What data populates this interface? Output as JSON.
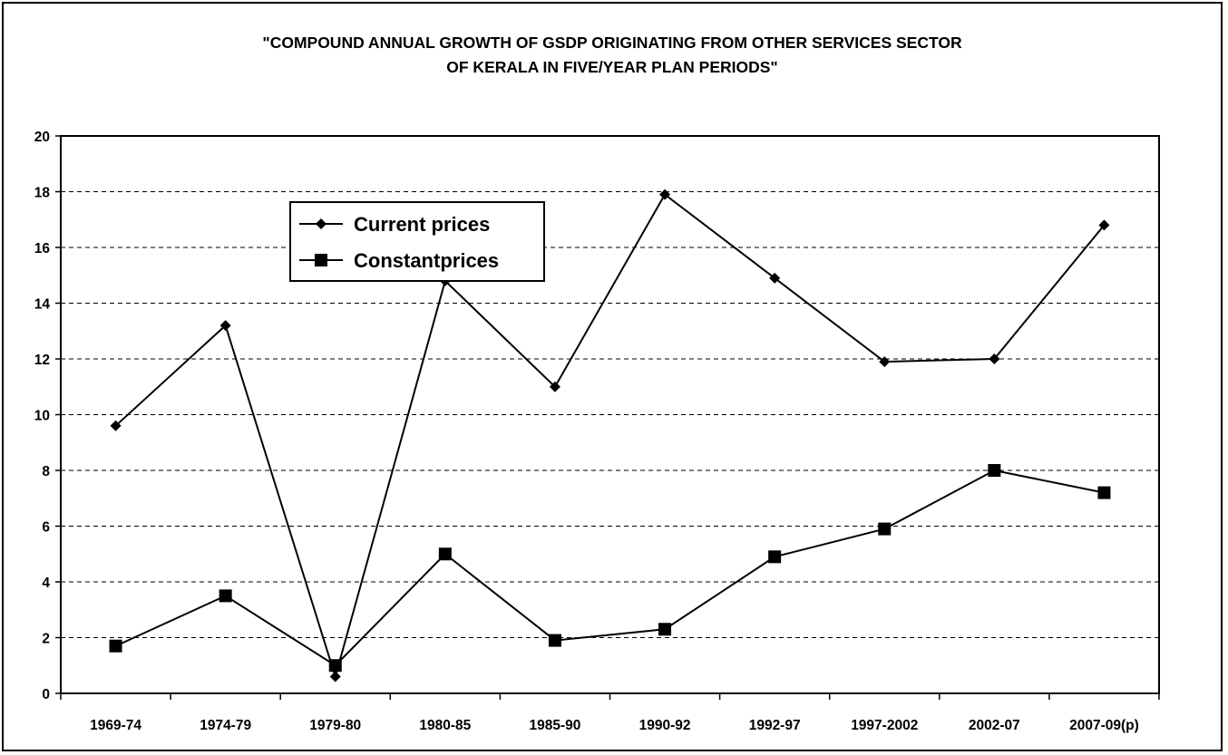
{
  "chart_data": {
    "type": "line",
    "title_lines": [
      "\"COMPOUND ANNUAL GROWTH OF GSDP ORIGINATING FROM OTHER SERVICES SECTOR",
      "OF KERALA IN FIVE/YEAR PLAN PERIODS\""
    ],
    "xlabel": "",
    "ylabel": "",
    "categories": [
      "1969-74",
      "1974-79",
      "1979-80",
      "1980-85",
      "1985-90",
      "1990-92",
      "1992-97",
      "1997-2002",
      "2002-07",
      "2007-09(p)"
    ],
    "ylim": [
      0,
      20
    ],
    "yticks": [
      0,
      2,
      4,
      6,
      8,
      10,
      12,
      14,
      16,
      18,
      20
    ],
    "grid": "horizontal dashed",
    "legend_position": "upper-left",
    "series": [
      {
        "name": "Current prices",
        "marker": "diamond",
        "color": "#000000",
        "values": [
          9.6,
          13.2,
          0.6,
          14.8,
          11.0,
          17.9,
          14.9,
          11.9,
          12.0,
          16.8
        ]
      },
      {
        "name": "Constantprices",
        "marker": "square",
        "color": "#000000",
        "values": [
          1.7,
          3.5,
          1.0,
          5.0,
          1.9,
          2.3,
          4.9,
          5.9,
          8.0,
          7.2
        ]
      }
    ]
  }
}
